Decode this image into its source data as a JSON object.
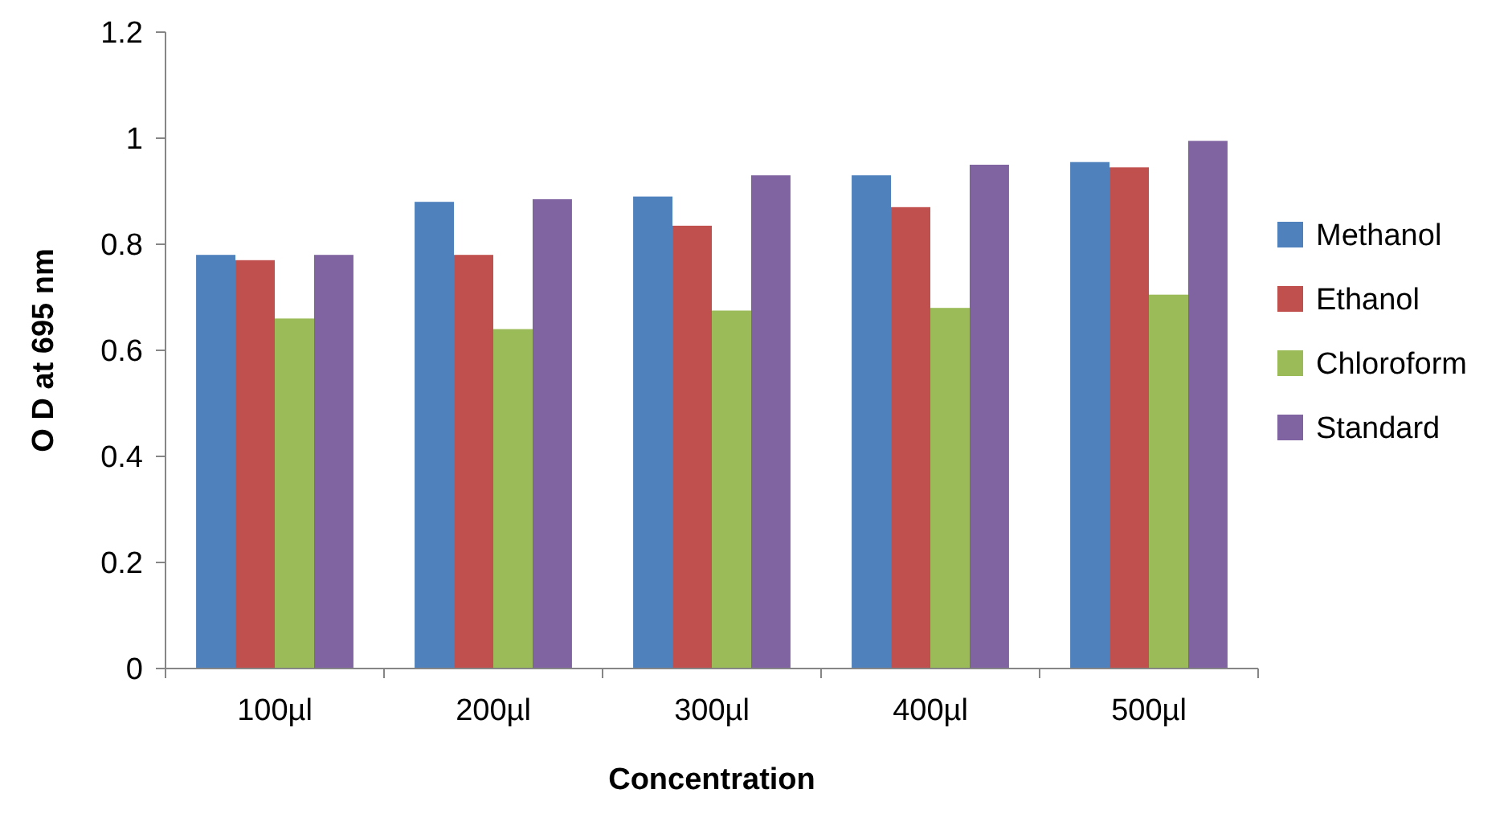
{
  "chart_data": {
    "type": "bar",
    "xlabel": "Concentration",
    "ylabel": "O D at 695 nm",
    "categories": [
      "100µl",
      "200µl",
      "300µl",
      "400µl",
      "500µl"
    ],
    "series": [
      {
        "name": "Methanol",
        "color": "#4f81bd",
        "values": [
          0.78,
          0.88,
          0.89,
          0.93,
          0.955
        ]
      },
      {
        "name": "Ethanol",
        "color": "#c0504d",
        "values": [
          0.77,
          0.78,
          0.835,
          0.87,
          0.945
        ]
      },
      {
        "name": "Chloroform",
        "color": "#9bbb59",
        "values": [
          0.66,
          0.64,
          0.675,
          0.68,
          0.705
        ]
      },
      {
        "name": "Standard",
        "color": "#8064a2",
        "values": [
          0.78,
          0.885,
          0.93,
          0.95,
          0.995
        ]
      }
    ],
    "ylim": [
      0,
      1.2
    ],
    "yticks": [
      0,
      0.2,
      0.4,
      0.6,
      0.8,
      1,
      1.2
    ],
    "grid": false,
    "legend": "right"
  }
}
